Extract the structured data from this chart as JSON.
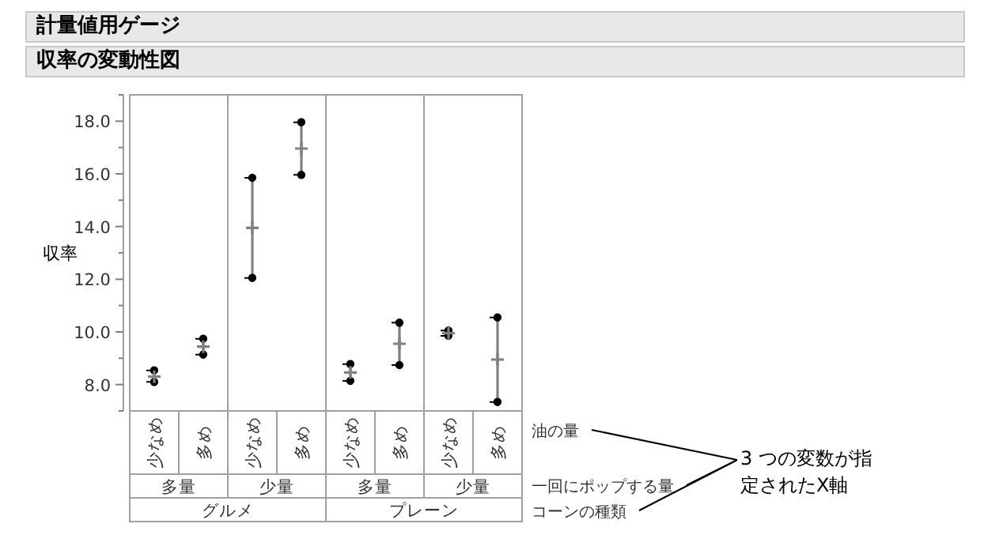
{
  "chart_data": {
    "type": "scatter",
    "title": "計量値用ゲージ",
    "subtitle": "収率の変動性図",
    "ylabel": "収率",
    "categories": [
      "少なめ",
      "多め",
      "少なめ",
      "多め",
      "少なめ",
      "多め",
      "少なめ",
      "多め"
    ],
    "series": [
      {
        "color": "#000000",
        "marker": "circle",
        "values": [
          8.1,
          9.14,
          12.05,
          15.96,
          8.14,
          8.74,
          9.85,
          7.34
        ]
      },
      {
        "color": "#000000",
        "marker": "circle",
        "values": [
          8.54,
          9.74,
          15.85,
          17.96,
          8.78,
          10.35,
          10.05,
          10.55
        ]
      },
      {
        "color": "#808080",
        "marker": "cross",
        "values": [
          8.3,
          9.44,
          13.95,
          16.96,
          8.46,
          9.55,
          9.95,
          8.95
        ]
      }
    ],
    "ylim": [
      7,
      19
    ],
    "yticks": [
      {
        "value": 7,
        "label": null
      },
      {
        "value": 8,
        "label": "8.0"
      },
      {
        "value": 9,
        "label": null
      },
      {
        "value": 10,
        "label": "10.0"
      },
      {
        "value": 11,
        "label": null
      },
      {
        "value": 12,
        "label": "12.0"
      },
      {
        "value": 13,
        "label": null
      },
      {
        "value": 14,
        "label": "14.0"
      },
      {
        "value": 15,
        "label": null
      },
      {
        "value": 16,
        "label": "16.0"
      },
      {
        "value": 17,
        "label": null
      },
      {
        "value": 18,
        "label": "18.0"
      },
      {
        "value": 19,
        "label": null
      }
    ],
    "annotations": [
      "多量",
      "少量",
      "多量",
      "少量",
      "グルメ",
      "プレーン",
      "油の量",
      "一回にポップする量",
      "コーンの種類",
      "3 つの変数が指定されたX軸"
    ]
  }
}
